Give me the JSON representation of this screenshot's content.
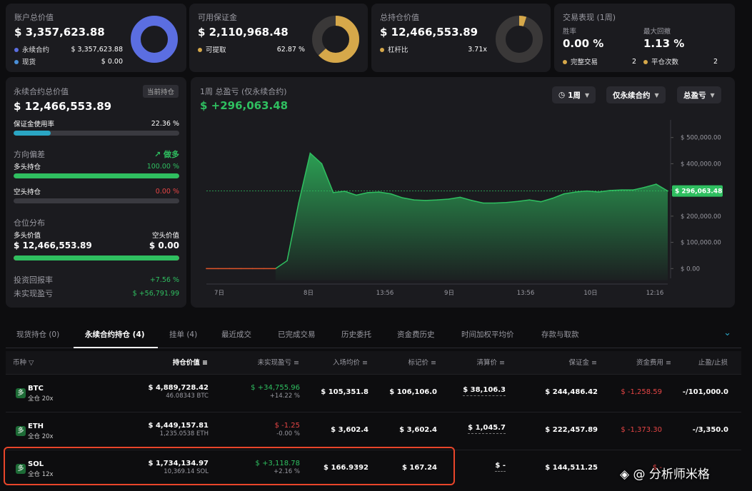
{
  "account": {
    "title": "账户总价值",
    "value": "$ 3,357,623.88",
    "rows": [
      {
        "label": "永续合约",
        "value": "$ 3,357,623.88",
        "color": "#5b6ee1"
      },
      {
        "label": "现货",
        "value": "$ 0.00",
        "color": "#4a8fd8"
      }
    ],
    "ring_fraction": 1.0,
    "ring_color": "#5b6ee1"
  },
  "margin": {
    "title": "可用保证金",
    "value": "$ 2,110,968.48",
    "row_label": "可提取",
    "row_value": "62.87 %",
    "color": "#d6a84a",
    "ring_fraction": 0.6287
  },
  "position": {
    "title": "总持仓价值",
    "value": "$ 12,466,553.89",
    "row_label": "杠杆比",
    "row_value": "3.71x",
    "color": "#d6a84a",
    "ring_fraction": 0.05
  },
  "perf": {
    "title": "交易表现 (1周)",
    "win_label": "胜率",
    "win_value": "0.00 %",
    "dd_label": "最大回撤",
    "dd_value": "1.13 %",
    "done_label": "完整交易",
    "done_value": "2",
    "flat_label": "平仓次数",
    "flat_value": "2"
  },
  "perp": {
    "title": "永续合约总价值",
    "tag": "当前持仓",
    "value": "$ 12,466,553.89",
    "usage_label": "保证金使用率",
    "usage_value": "22.36 %",
    "usage_fraction": 0.2236,
    "bias_label": "方向偏差",
    "bias_value": "做多",
    "long_label": "多头持仓",
    "long_value": "100.00 %",
    "long_fraction": 1.0,
    "short_label": "空头持仓",
    "short_value": "0.00 %",
    "short_fraction": 0.0,
    "dist_label": "仓位分布",
    "long_val_label": "多头价值",
    "short_val_label": "空头价值",
    "long_val": "$ 12,466,553.89",
    "short_val": "$ 0.00",
    "long_share": 1.0,
    "roi_label": "投资回报率",
    "roi_value": "+7.56 %",
    "upnl_label": "未实现盈亏",
    "upnl_value": "$ +56,791.99"
  },
  "pnl": {
    "title": "1周 总盈亏 (仅永续合约)",
    "value": "$ +296,063.48",
    "filters": [
      "1周",
      "仅永续合约",
      "总盈亏"
    ],
    "current_label": "$ 296,063.48"
  },
  "chart_data": {
    "type": "area",
    "xlabels": [
      "7日",
      "8日",
      "13:56",
      "9日",
      "13:56",
      "10日",
      "12:16"
    ],
    "ytick_labels": [
      "$ 500,000.00",
      "$ 400,000.00",
      "$ 300,000.00",
      "$ 200,000.00",
      "$ 100,000.00",
      "$ 0.00"
    ],
    "ylim": [
      -10000,
      540000
    ],
    "x": [
      0,
      1,
      2,
      3,
      4,
      5,
      6,
      7,
      8,
      9,
      10,
      11,
      12,
      13,
      14,
      15,
      16,
      17,
      18,
      19,
      20,
      21,
      22,
      23,
      24,
      25,
      26,
      27,
      28,
      29,
      30,
      31,
      32,
      33,
      34,
      35,
      36,
      37,
      38,
      39,
      40
    ],
    "y": [
      0,
      0,
      0,
      0,
      0,
      0,
      0,
      30000,
      250000,
      440000,
      400000,
      290000,
      295000,
      280000,
      290000,
      292000,
      285000,
      270000,
      262000,
      260000,
      262000,
      265000,
      272000,
      260000,
      250000,
      250000,
      252000,
      256000,
      262000,
      255000,
      268000,
      285000,
      292000,
      296000,
      292000,
      298000,
      300000,
      300000,
      310000,
      322000,
      296063
    ],
    "negative_until_index": 6,
    "current_value": 296063.48
  },
  "tabs": [
    "现货持仓 (0)",
    "永续合约持仓 (4)",
    "挂单 (4)",
    "最近成交",
    "已完成交易",
    "历史委托",
    "资金费历史",
    "时间加权平均价",
    "存款与取款"
  ],
  "columns": [
    "币种",
    "持仓价值",
    "未实现盈亏",
    "入场均价",
    "标记价",
    "清算价",
    "保证金",
    "资金费用",
    "止盈/止损"
  ],
  "rows": [
    {
      "coin": "BTC",
      "lev": "全仓 20x",
      "value": "$ 4,889,728.42",
      "qty": "46.08343 BTC",
      "upnl": "$ +34,755.96",
      "upnl_pct": "+14.22 %",
      "pos": true,
      "entry": "$ 105,351.8",
      "mark": "$ 106,106.0",
      "liq": "$ 38,106.3",
      "margin": "$ 244,486.42",
      "fund": "$ -1,258.59",
      "tpsl": "-/101,000.0"
    },
    {
      "coin": "ETH",
      "lev": "全仓 20x",
      "value": "$ 4,449,157.81",
      "qty": "1,235.0538 ETH",
      "upnl": "$ -1.25",
      "upnl_pct": "-0.00 %",
      "pos": false,
      "entry": "$ 3,602.4",
      "mark": "$ 3,602.4",
      "liq": "$ 1,045.7",
      "margin": "$ 222,457.89",
      "fund": "$ -1,373.30",
      "tpsl": "-/3,350.0"
    },
    {
      "coin": "SOL",
      "lev": "全仓 12x",
      "value": "$ 1,734,134.97",
      "qty": "10,369.14 SOL",
      "upnl": "$ +3,118.78",
      "upnl_pct": "+2.16 %",
      "pos": true,
      "entry": "$ 166.9392",
      "mark": "$ 167.24",
      "liq": "$ -",
      "margin": "$ 144,511.25",
      "fund": "$ -",
      "tpsl": ""
    }
  ],
  "long_badge": "多",
  "watermark": "@ 分析师米格"
}
